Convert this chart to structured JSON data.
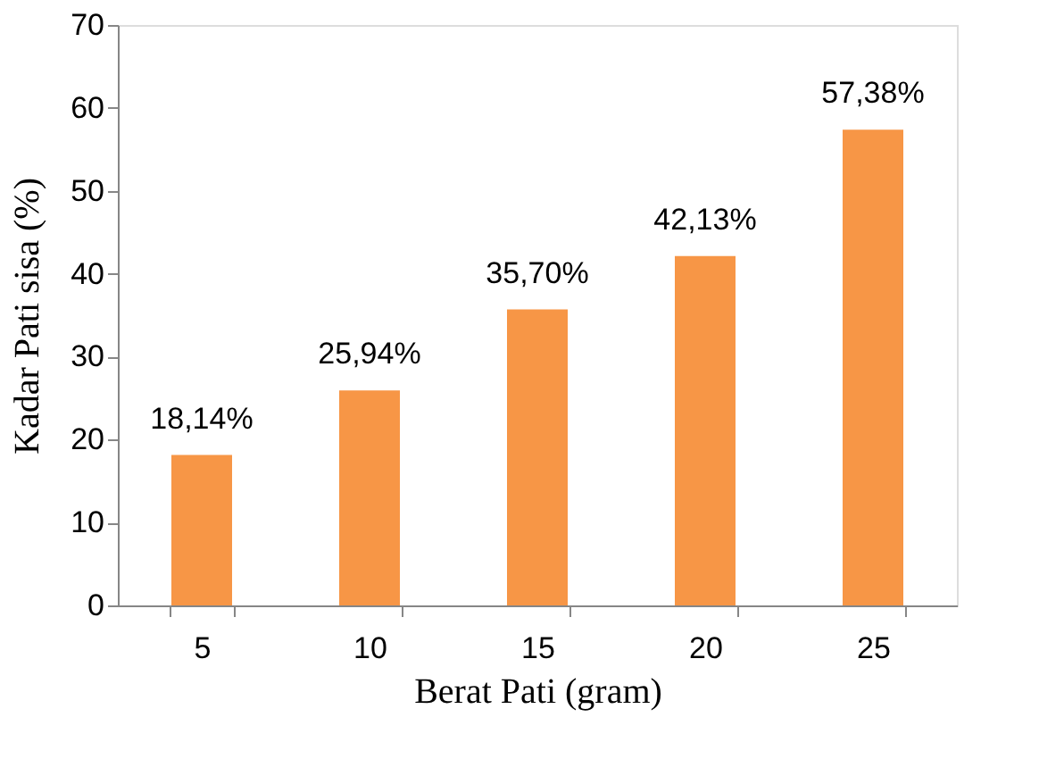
{
  "chart_data": {
    "type": "bar",
    "xlabel": "Berat Pati (gram)",
    "ylabel": "Kadar Pati sisa (%)",
    "categories": [
      "5",
      "10",
      "15",
      "20",
      "25"
    ],
    "values": [
      18.14,
      25.94,
      35.7,
      42.13,
      57.38
    ],
    "value_labels": [
      "18,14%",
      "25,94%",
      "35,70%",
      "42,13%",
      "57,38%"
    ],
    "color": "#f79646",
    "ylim": [
      0,
      70
    ],
    "yticks": [
      0,
      10,
      20,
      30,
      40,
      50,
      60,
      70
    ],
    "grid": false
  }
}
